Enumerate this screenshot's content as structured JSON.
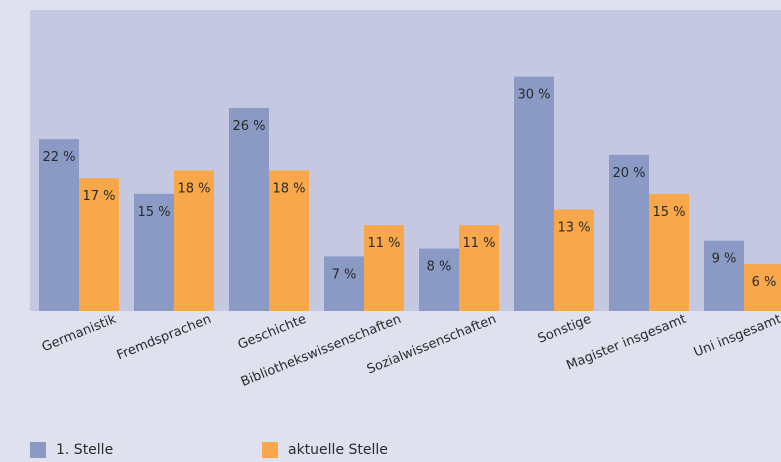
{
  "chart_data": {
    "type": "bar",
    "categories": [
      "Germanistik",
      "Fremdsprachen",
      "Geschichte",
      "Bibliothekswissenschaften",
      "Sozialwissenschaften",
      "Sonstige",
      "Magister insgesamt",
      "Uni insgesamt"
    ],
    "series": [
      {
        "name": "1. Stelle",
        "values": [
          22,
          15,
          26,
          7,
          8,
          30,
          20,
          9
        ],
        "color": "#8a9ac4"
      },
      {
        "name": "aktuelle Stelle",
        "values": [
          17,
          18,
          18,
          11,
          11,
          13,
          15,
          6
        ],
        "color": "#f8a84a"
      }
    ],
    "value_labels": {
      "series_0": [
        "22 %",
        "15 %",
        "26 %",
        "7 %",
        "8 %",
        "30 %",
        "20 %",
        "9 %"
      ],
      "series_1": [
        "17 %",
        "18 %",
        "18 %",
        "11 %",
        "11 %",
        "13 %",
        "15 %",
        "6 %"
      ]
    },
    "ylim": [
      0,
      37
    ],
    "grid": false,
    "legend_position": "bottom-left",
    "plot_background": "#c4c9e1",
    "page_background": "#dfe2ee"
  },
  "legend": {
    "item1_label": "1. Stelle",
    "item1_color": "#8a9ac4",
    "item2_label": "aktuelle Stelle",
    "item2_color": "#f8a84a"
  }
}
